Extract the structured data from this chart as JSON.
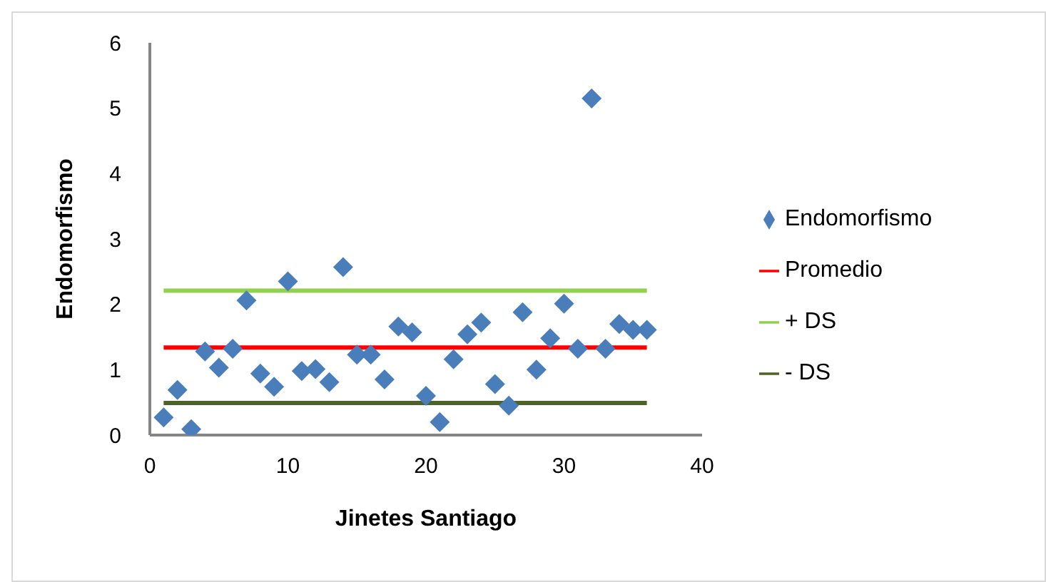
{
  "chart_data": {
    "type": "scatter",
    "xlabel": "Jinetes Santiago",
    "ylabel": "Endomorfismo",
    "xlim": [
      0,
      40
    ],
    "xticks": [
      0,
      10,
      20,
      30,
      40
    ],
    "ylim": [
      0,
      6
    ],
    "yticks": [
      0,
      1,
      2,
      3,
      4,
      5,
      6
    ],
    "grid": false,
    "legend": "right",
    "series": [
      {
        "name": "Endomorfismo",
        "type": "scatter",
        "marker": "diamond",
        "color": "#4a7ebb",
        "x": [
          1,
          2,
          3,
          4,
          5,
          6,
          7,
          8,
          9,
          10,
          11,
          12,
          13,
          14,
          15,
          16,
          17,
          18,
          19,
          20,
          21,
          22,
          23,
          24,
          25,
          26,
          27,
          28,
          29,
          30,
          31,
          32,
          33,
          34,
          35,
          36
        ],
        "values": [
          0.27,
          0.69,
          0.09,
          1.28,
          1.03,
          1.32,
          2.06,
          0.94,
          0.74,
          2.35,
          0.98,
          1.01,
          0.81,
          2.57,
          1.23,
          1.23,
          0.85,
          1.66,
          1.57,
          0.6,
          0.2,
          1.16,
          1.54,
          1.72,
          0.78,
          0.45,
          1.88,
          1.0,
          1.48,
          2.01,
          1.32,
          5.15,
          1.32,
          1.7,
          1.61,
          1.61
        ]
      },
      {
        "name": "Promedio",
        "type": "line",
        "marker": "none",
        "color": "#ff0000",
        "x": [
          1,
          36
        ],
        "values": [
          1.34,
          1.34
        ]
      },
      {
        "name": "+ DS",
        "type": "line",
        "marker": "none",
        "color": "#92d050",
        "x": [
          1,
          36
        ],
        "values": [
          2.21,
          2.21
        ]
      },
      {
        "name": "- DS",
        "type": "line",
        "marker": "none",
        "color": "#4f6228",
        "x": [
          1,
          36
        ],
        "values": [
          0.49,
          0.49
        ]
      }
    ]
  }
}
